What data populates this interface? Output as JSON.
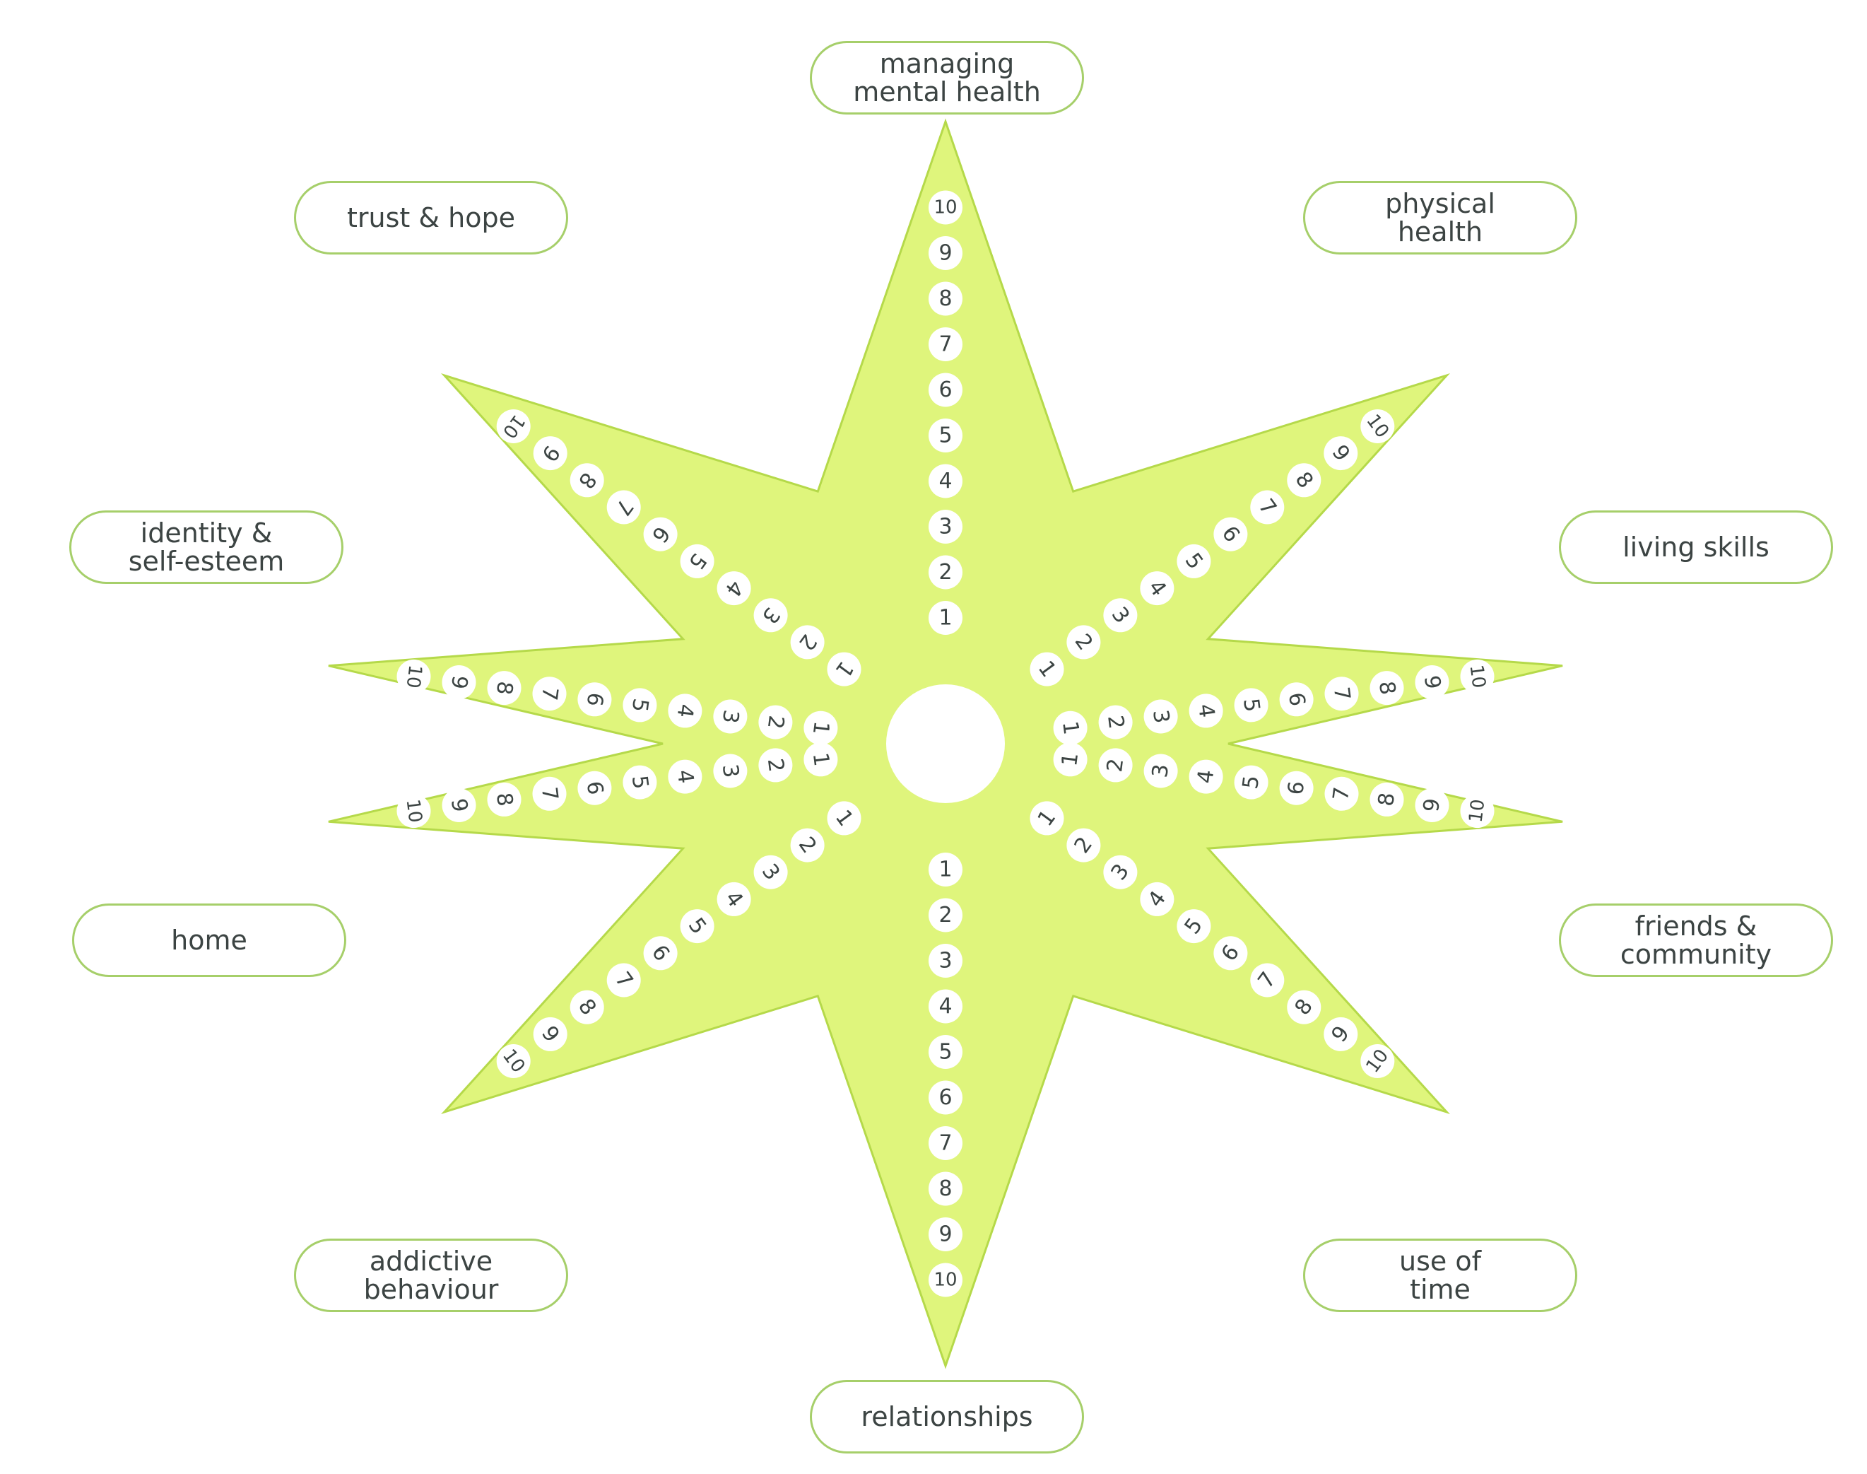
{
  "colors": {
    "star_fill": "#dff57c",
    "star_stroke": "#b5d94a",
    "label_border": "#a6cf6a",
    "text": "#3c4443",
    "circle_fill": "#ffffff"
  },
  "scale": {
    "min": 1,
    "max": 10,
    "values": [
      "1",
      "2",
      "3",
      "4",
      "5",
      "6",
      "7",
      "8",
      "9",
      "10"
    ]
  },
  "areas": [
    {
      "id": "managing-mental-health",
      "label": "managing\nmental health"
    },
    {
      "id": "physical-health",
      "label": "physical\nhealth"
    },
    {
      "id": "living-skills",
      "label": "living skills"
    },
    {
      "id": "friends-community",
      "label": "friends &\ncommunity"
    },
    {
      "id": "use-of-time",
      "label": "use of\ntime"
    },
    {
      "id": "relationships",
      "label": "relationships"
    },
    {
      "id": "addictive-behaviour",
      "label": "addictive\nbehaviour"
    },
    {
      "id": "home",
      "label": "home"
    },
    {
      "id": "identity-self-esteem",
      "label": "identity &\nself-esteem"
    },
    {
      "id": "trust-hope",
      "label": "trust & hope"
    }
  ]
}
